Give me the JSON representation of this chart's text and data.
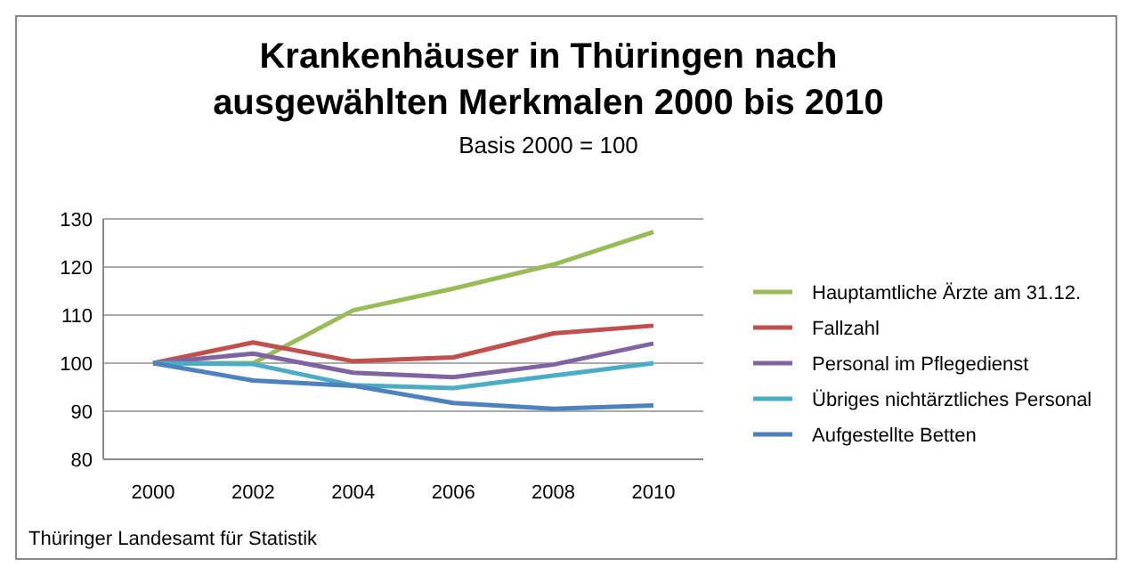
{
  "chart_data": {
    "type": "line",
    "title": "Krankenhäuser in Thüringen nach ausgewählten Merkmalen 2000 bis 2010",
    "subtitle": "Basis 2000 = 100",
    "categories": [
      "2000",
      "2002",
      "2004",
      "2006",
      "2008",
      "2010"
    ],
    "series": [
      {
        "name": "Hauptamtliche Ärzte am 31.12.",
        "color": "#9bbb59",
        "values": [
          100,
          100,
          111,
          115.5,
          120.5,
          127.3
        ]
      },
      {
        "name": "Fallzahl",
        "color": "#c0504d",
        "values": [
          100,
          104.3,
          100.4,
          101.2,
          106.2,
          107.8
        ]
      },
      {
        "name": "Personal im Pflegedienst",
        "color": "#8064a2",
        "values": [
          100,
          102,
          98,
          97.1,
          99.7,
          104.1
        ]
      },
      {
        "name": "Übriges nichtärztliches Personal",
        "color": "#4bacc6",
        "values": [
          100,
          99.8,
          95.4,
          94.8,
          97.4,
          100
        ]
      },
      {
        "name": "Aufgestellte Betten",
        "color": "#4f81bd",
        "values": [
          100,
          96.4,
          95.3,
          91.7,
          90.5,
          91.2
        ]
      }
    ],
    "ylim": [
      80,
      130
    ],
    "yticks": [
      80,
      90,
      100,
      110,
      120,
      130
    ],
    "grid": "y",
    "legend": "right",
    "marker": "none",
    "line_style": "solid",
    "annotations": [
      "Thüringer Landesamt für Statistik"
    ]
  }
}
